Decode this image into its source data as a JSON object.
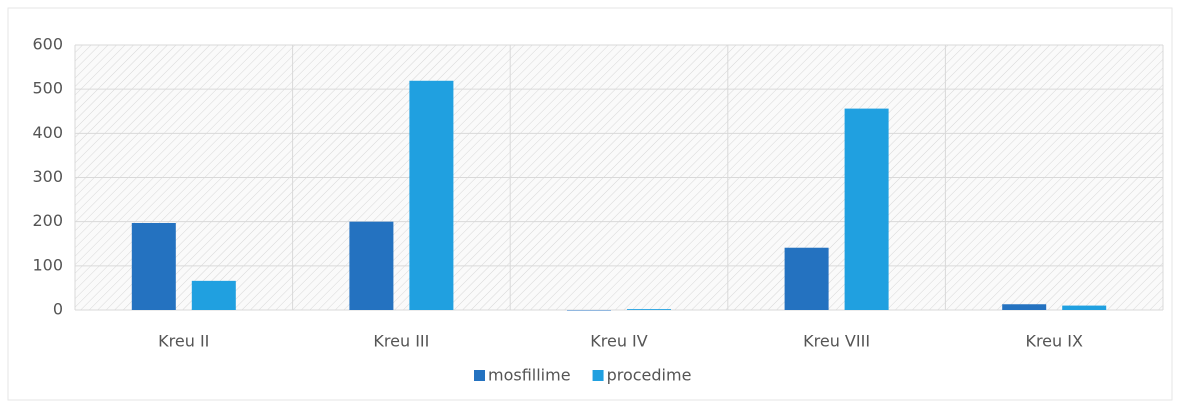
{
  "chart_data": {
    "type": "bar",
    "categories": [
      "Kreu II",
      "Kreu III",
      "Kreu IV",
      "Kreu VIII",
      "Kreu IX"
    ],
    "series": [
      {
        "name": "mosfillime",
        "color": "#2472c0",
        "values": [
          197,
          200,
          0,
          141,
          13
        ]
      },
      {
        "name": "procedime",
        "color": "#20a0e0",
        "values": [
          66,
          519,
          2,
          456,
          10
        ]
      }
    ],
    "ylim": [
      0,
      600
    ],
    "yticks": [
      0,
      100,
      200,
      300,
      400,
      500,
      600
    ],
    "grid": true,
    "legend": "bottom"
  }
}
